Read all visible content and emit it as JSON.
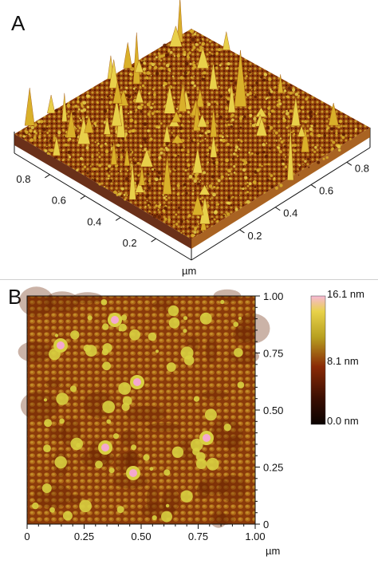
{
  "panel_a": {
    "letter": "A",
    "left_axis_ticks": [
      "0.8",
      "0.6",
      "0.4",
      "0.2"
    ],
    "right_axis_ticks": [
      "0.8",
      "0.6",
      "0.4",
      "0.2"
    ],
    "unit": "µm",
    "surface_colors": {
      "dark": "#5a1a00",
      "mid": "#a0520a",
      "light": "#d9b02a",
      "peak": "#e8d04a"
    }
  },
  "panel_b": {
    "letter": "B",
    "x_ticks": [
      "0",
      "0.25",
      "0.50",
      "0.75",
      "1.00"
    ],
    "y_ticks": [
      "1.00",
      "0.75",
      "0.50",
      "0.25",
      "0"
    ],
    "x_unit": "µm",
    "colorbar": {
      "labels": [
        "16.1 nm",
        "8.1 nm",
        "0.0 nm"
      ],
      "colors": [
        "#f7b8d6",
        "#e8d24a",
        "#b8a020",
        "#8a2a06",
        "#3a0e02",
        "#0a0301"
      ]
    },
    "map_colors": {
      "base": "#8a3a0a",
      "mid": "#b06a18",
      "grain": "#c4902a",
      "high": "#d8d040",
      "peak": "#f4a8cf"
    }
  }
}
